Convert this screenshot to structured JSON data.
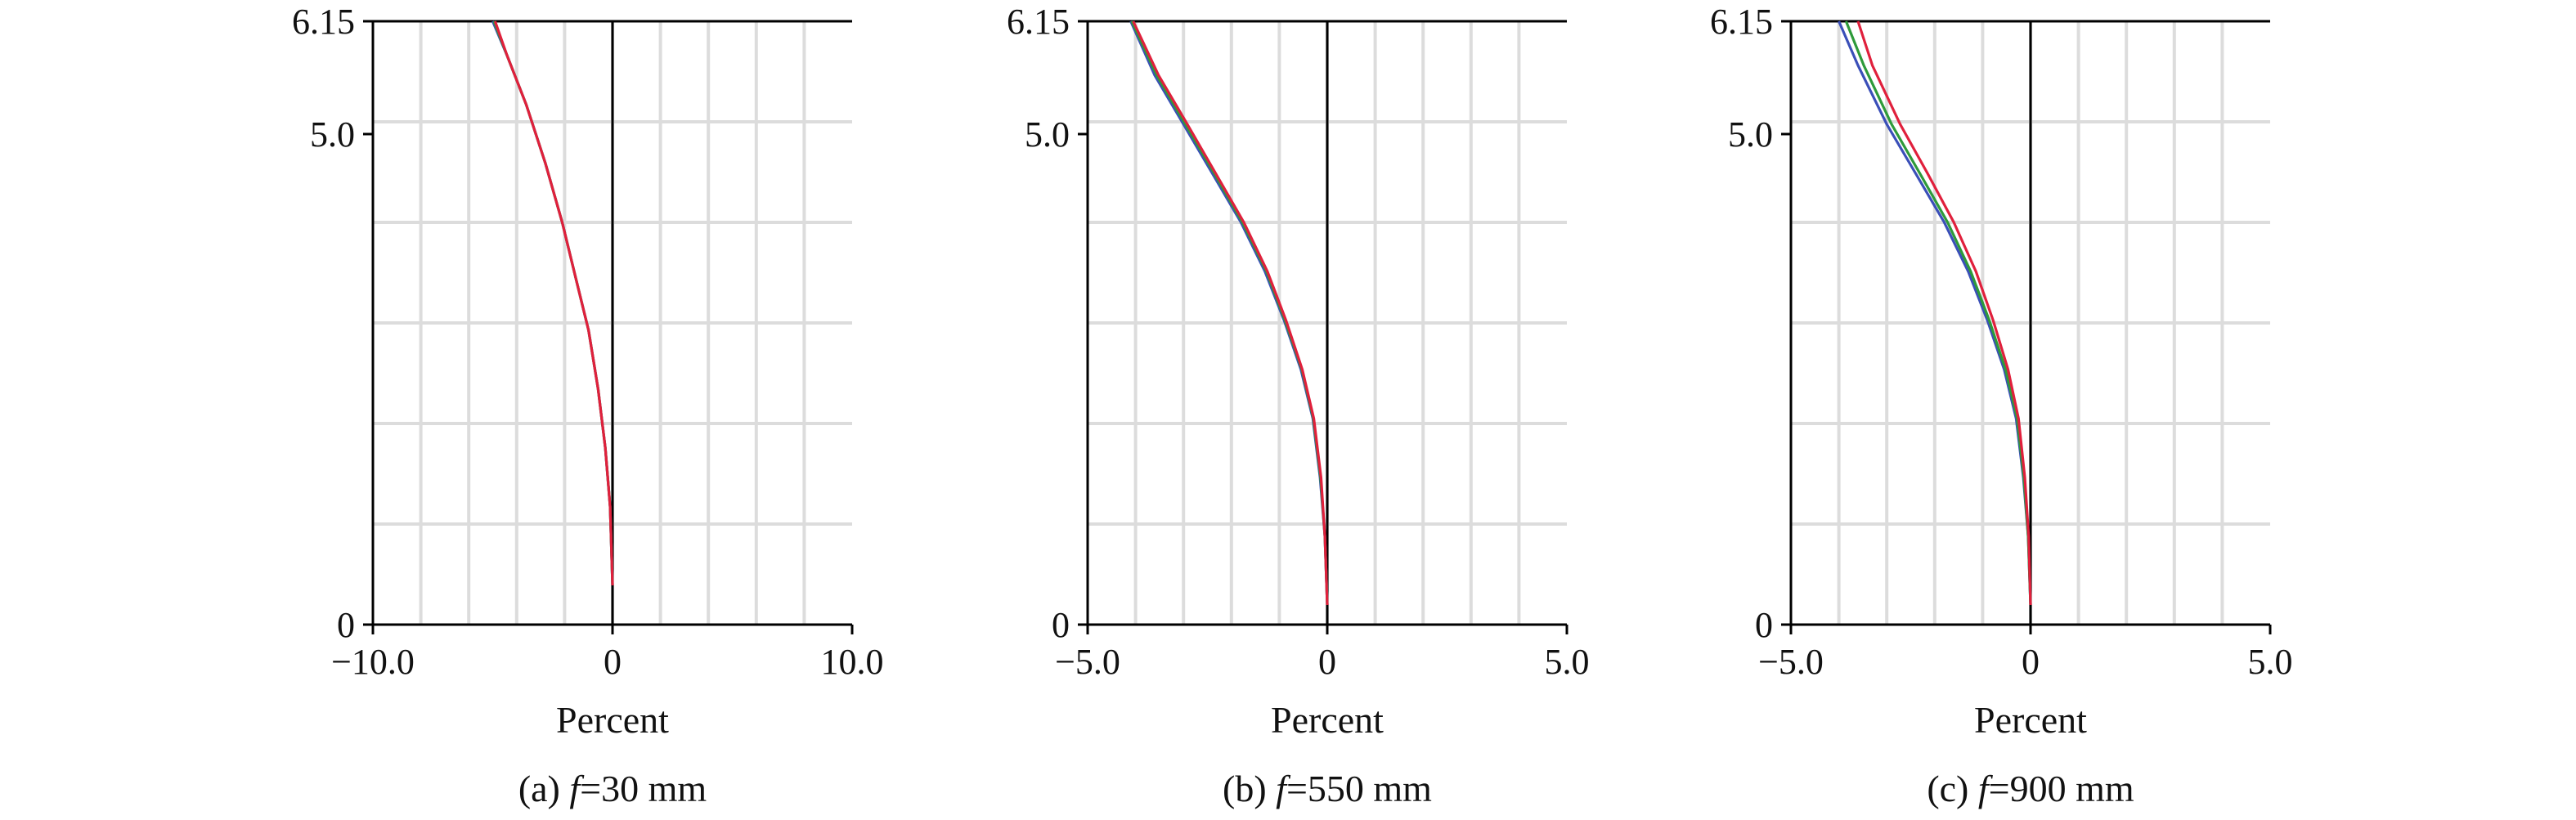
{
  "chart_data": [
    {
      "type": "line",
      "caption_prefix": "(a) ",
      "caption_italic": "f",
      "caption_suffix": "=30 mm",
      "xlabel": "Percent",
      "ylabel": "",
      "xlim": [
        -10.0,
        10.0
      ],
      "ylim": [
        0,
        6.15
      ],
      "xticks": [
        -10.0,
        0,
        10.0
      ],
      "xtick_labels": [
        "−10.0",
        "0",
        "10.0"
      ],
      "yticks": [
        0,
        5.0,
        6.15
      ],
      "ytick_labels": [
        "0",
        "5.0",
        "6.15"
      ],
      "grid": true,
      "series": [
        {
          "color": "#3a4fb8",
          "x": [
            0,
            -0.1,
            -0.3,
            -0.6,
            -1.0,
            -1.5,
            -2.1,
            -2.8,
            -3.6,
            -4.4,
            -5.0
          ],
          "y": [
            0.4,
            1.2,
            1.8,
            2.4,
            3.0,
            3.5,
            4.1,
            4.7,
            5.3,
            5.8,
            6.15
          ]
        },
        {
          "color": "#2e9a3a",
          "x": [
            0,
            -0.1,
            -0.3,
            -0.6,
            -1.0,
            -1.5,
            -2.1,
            -2.8,
            -3.6,
            -4.4,
            -4.95
          ],
          "y": [
            0.4,
            1.2,
            1.8,
            2.4,
            3.0,
            3.5,
            4.1,
            4.7,
            5.3,
            5.8,
            6.15
          ]
        },
        {
          "color": "#e0203c",
          "x": [
            0,
            -0.1,
            -0.3,
            -0.6,
            -1.0,
            -1.5,
            -2.1,
            -2.8,
            -3.6,
            -4.4,
            -4.9
          ],
          "y": [
            0.4,
            1.2,
            1.8,
            2.4,
            3.0,
            3.5,
            4.1,
            4.7,
            5.3,
            5.8,
            6.15
          ]
        }
      ]
    },
    {
      "type": "line",
      "caption_prefix": "(b) ",
      "caption_italic": "f",
      "caption_suffix": "=550 mm",
      "xlabel": "Percent",
      "ylabel": "",
      "xlim": [
        -5.0,
        5.0
      ],
      "ylim": [
        0,
        6.15
      ],
      "xticks": [
        -5.0,
        0,
        5.0
      ],
      "xtick_labels": [
        "−5.0",
        "0",
        "5.0"
      ],
      "yticks": [
        0,
        5.0,
        6.15
      ],
      "ytick_labels": [
        "0",
        "5.0",
        "6.15"
      ],
      "grid": true,
      "series": [
        {
          "color": "#3a4fb8",
          "x": [
            0,
            -0.05,
            -0.15,
            -0.3,
            -0.55,
            -0.9,
            -1.3,
            -1.8,
            -2.4,
            -3.0,
            -3.6,
            -4.1
          ],
          "y": [
            0.2,
            0.9,
            1.5,
            2.1,
            2.6,
            3.1,
            3.6,
            4.1,
            4.6,
            5.1,
            5.6,
            6.15
          ]
        },
        {
          "color": "#2e9a3a",
          "x": [
            0,
            -0.05,
            -0.14,
            -0.29,
            -0.53,
            -0.88,
            -1.27,
            -1.77,
            -2.36,
            -2.96,
            -3.56,
            -4.08
          ],
          "y": [
            0.2,
            0.9,
            1.5,
            2.1,
            2.6,
            3.1,
            3.6,
            4.1,
            4.6,
            5.1,
            5.6,
            6.15
          ]
        },
        {
          "color": "#e0203c",
          "x": [
            0,
            -0.05,
            -0.13,
            -0.28,
            -0.52,
            -0.86,
            -1.25,
            -1.74,
            -2.33,
            -2.92,
            -3.52,
            -4.05
          ],
          "y": [
            0.2,
            0.9,
            1.5,
            2.1,
            2.6,
            3.1,
            3.6,
            4.1,
            4.6,
            5.1,
            5.6,
            6.15
          ]
        }
      ]
    },
    {
      "type": "line",
      "caption_prefix": "(c) ",
      "caption_italic": "f",
      "caption_suffix": "=900 mm",
      "xlabel": "Percent",
      "ylabel": "",
      "xlim": [
        -5.0,
        5.0
      ],
      "ylim": [
        0,
        6.15
      ],
      "xticks": [
        -5.0,
        0,
        5.0
      ],
      "xtick_labels": [
        "−5.0",
        "0",
        "5.0"
      ],
      "yticks": [
        0,
        5.0,
        6.15
      ],
      "ytick_labels": [
        "0",
        "5.0",
        "6.15"
      ],
      "grid": true,
      "series": [
        {
          "color": "#3a4fb8",
          "x": [
            0,
            -0.05,
            -0.15,
            -0.3,
            -0.55,
            -0.9,
            -1.3,
            -1.8,
            -2.4,
            -3.0,
            -3.6,
            -4.0
          ],
          "y": [
            0.2,
            0.9,
            1.5,
            2.1,
            2.6,
            3.1,
            3.6,
            4.1,
            4.6,
            5.1,
            5.7,
            6.15
          ]
        },
        {
          "color": "#2e9a3a",
          "x": [
            0,
            -0.05,
            -0.14,
            -0.28,
            -0.52,
            -0.86,
            -1.25,
            -1.73,
            -2.31,
            -2.9,
            -3.48,
            -3.85
          ],
          "y": [
            0.2,
            0.9,
            1.5,
            2.1,
            2.6,
            3.1,
            3.6,
            4.1,
            4.6,
            5.1,
            5.7,
            6.15
          ]
        },
        {
          "color": "#e0203c",
          "x": [
            0,
            -0.04,
            -0.12,
            -0.25,
            -0.47,
            -0.78,
            -1.14,
            -1.6,
            -2.15,
            -2.72,
            -3.3,
            -3.6
          ],
          "y": [
            0.2,
            0.9,
            1.5,
            2.1,
            2.6,
            3.1,
            3.6,
            4.1,
            4.6,
            5.1,
            5.7,
            6.15
          ]
        }
      ]
    }
  ]
}
